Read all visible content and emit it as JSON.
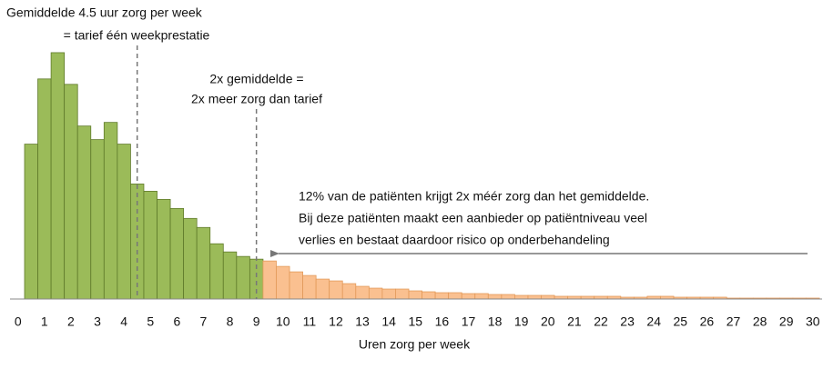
{
  "chart_data": {
    "type": "histogram",
    "x_label": "Uren zorg per week",
    "annotations": [
      "Gemiddelde 4.5 uur zorg per week",
      "= tarief één weekprestatie",
      "2x gemiddelde =",
      "2x meer zorg dan tarief",
      "12% van de patiënten krijgt 2x méér zorg dan het gemiddelde.",
      "Bij deze patiënten maakt een aanbieder op patiëntniveau veel",
      "verlies en bestaat daardoor risico op onderbehandeling"
    ],
    "reference_lines": [
      4.5,
      9
    ],
    "bins": [
      0.25,
      0.75,
      1.25,
      1.75,
      2.25,
      2.75,
      3.25,
      3.75,
      4.25,
      4.75,
      5.25,
      5.75,
      6.25,
      6.75,
      7.25,
      7.75,
      8.25,
      8.75,
      9.25,
      9.75,
      10.25,
      10.75,
      11.25,
      11.75,
      12.25,
      12.75,
      13.25,
      13.75,
      14.25,
      14.75,
      15.25,
      15.75,
      16.25,
      16.75,
      17.25,
      17.75,
      18.25,
      18.75,
      19.25,
      19.75,
      20.25,
      20.75,
      21.25,
      21.75,
      22.25,
      22.75,
      23.25,
      23.75,
      24.25,
      24.75,
      25.25,
      25.75,
      26.25,
      26.75,
      27.25,
      27.75,
      28.25,
      28.75,
      29.25,
      29.75,
      30.25
    ],
    "values": [
      171,
      243,
      272,
      237,
      191,
      176,
      195,
      171,
      127,
      119,
      110,
      100,
      89,
      79,
      61,
      52,
      47,
      44,
      42,
      36,
      30,
      26,
      22,
      20,
      17,
      14,
      12,
      11,
      11,
      9,
      8,
      7,
      7,
      6,
      6,
      5,
      5,
      4,
      4,
      4,
      3,
      3,
      3,
      3,
      3,
      2,
      2,
      3,
      3,
      2,
      2,
      2,
      2,
      1,
      1,
      1,
      1,
      1,
      1,
      1
    ],
    "colors": [
      "#9bbb59",
      "#9bbb59",
      "#9bbb59",
      "#9bbb59",
      "#9bbb59",
      "#9bbb59",
      "#9bbb59",
      "#9bbb59",
      "#9bbb59",
      "#9bbb59",
      "#9bbb59",
      "#9bbb59",
      "#9bbb59",
      "#9bbb59",
      "#9bbb59",
      "#9bbb59",
      "#9bbb59",
      "#9bbb59",
      "#fac090",
      "#fac090",
      "#fac090",
      "#fac090",
      "#fac090",
      "#fac090",
      "#fac090",
      "#fac090",
      "#fac090",
      "#fac090",
      "#fac090",
      "#fac090",
      "#fac090",
      "#fac090",
      "#fac090",
      "#fac090",
      "#fac090",
      "#fac090",
      "#fac090",
      "#fac090",
      "#fac090",
      "#fac090",
      "#fac090",
      "#fac090",
      "#fac090",
      "#fac090",
      "#fac090",
      "#fac090",
      "#fac090",
      "#fac090",
      "#fac090",
      "#fac090",
      "#fac090",
      "#fac090",
      "#fac090",
      "#fac090",
      "#fac090",
      "#fac090",
      "#fac090",
      "#fac090",
      "#fac090",
      "#fac090"
    ],
    "xlim": [
      -0.3,
      30.35
    ],
    "ylim": [
      0,
      290
    ],
    "xticks": [
      0,
      1,
      2,
      3,
      4,
      5,
      6,
      7,
      8,
      9,
      10,
      11,
      12,
      13,
      14,
      15,
      16,
      17,
      18,
      19,
      20,
      21,
      22,
      23,
      24,
      25,
      26,
      27,
      28,
      29,
      30
    ]
  }
}
